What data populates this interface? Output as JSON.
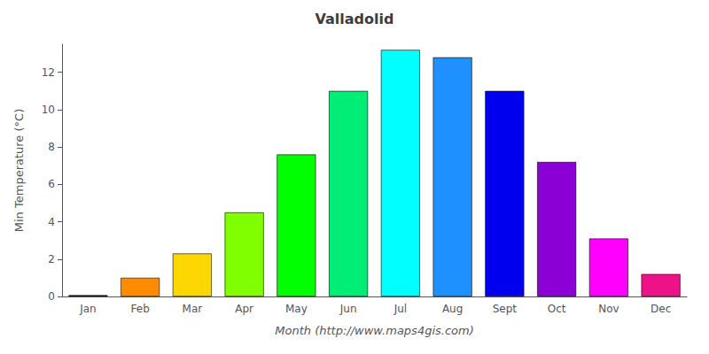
{
  "chart_data": {
    "type": "bar",
    "title": "Valladolid",
    "xlabel": "Month (http://www.maps4gis.com)",
    "ylabel": "Min Temperature (°C)",
    "categories": [
      "Jan",
      "Feb",
      "Mar",
      "Apr",
      "May",
      "Jun",
      "Jul",
      "Aug",
      "Sept",
      "Oct",
      "Nov",
      "Dec"
    ],
    "values": [
      0.07,
      1.0,
      2.3,
      4.5,
      7.6,
      11.0,
      13.2,
      12.8,
      11.0,
      7.2,
      3.1,
      1.2
    ],
    "colors": [
      "#050505",
      "#FF8C00",
      "#FFD700",
      "#7FFF00",
      "#00FF00",
      "#00EE76",
      "#00FFFF",
      "#1E90FF",
      "#0000EE",
      "#8B00D4",
      "#FF00FF",
      "#EE1289"
    ],
    "ylim": [
      0,
      13.5
    ],
    "yticks": [
      0,
      2,
      4,
      6,
      8,
      10,
      12
    ],
    "grid": false
  }
}
